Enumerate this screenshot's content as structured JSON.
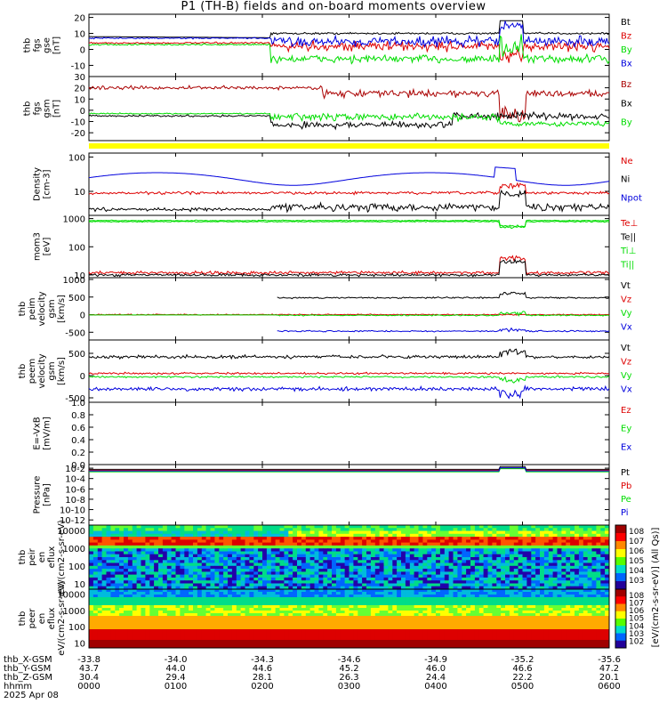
{
  "title": "P1 (TH-B) fields and on-board moments overview",
  "date": "2025 Apr 08",
  "colorbar_unit": "[eV/(cm2-s-sr-eV)] (All Qs)]",
  "time_axis": {
    "rows": [
      {
        "label": "thb_X-GSM",
        "values": [
          "-33.8",
          "-34.0",
          "-34.3",
          "-34.6",
          "-34.9",
          "-35.2",
          "-35.6"
        ]
      },
      {
        "label": "thb_Y-GSM",
        "values": [
          "43.7",
          "44.0",
          "44.6",
          "45.2",
          "46.0",
          "46.6",
          "47.2"
        ]
      },
      {
        "label": "thb_Z-GSM",
        "values": [
          "30.4",
          "29.4",
          "28.1",
          "26.3",
          "24.4",
          "22.2",
          "20.1"
        ]
      },
      {
        "label": "hhmm",
        "values": [
          "0000",
          "0100",
          "0200",
          "0300",
          "0400",
          "0500",
          "0600"
        ]
      }
    ]
  },
  "chart_data": [
    {
      "type": "line",
      "ylabel": "thb fgs gse [nT]",
      "ylim": [
        -17,
        22
      ],
      "ticks": [
        "20",
        "10",
        "0",
        "-10"
      ],
      "tickvals": [
        20,
        10,
        0,
        -10
      ],
      "series": [
        {
          "name": "Bt",
          "color": "#000000"
        },
        {
          "name": "Bz",
          "color": "#dd0000"
        },
        {
          "name": "By",
          "color": "#00dd00"
        },
        {
          "name": "Bx",
          "color": "#0000dd"
        }
      ]
    },
    {
      "type": "line",
      "ylabel": "thb fgs gsm [nT]",
      "ylim": [
        -27,
        30
      ],
      "ticks": [
        "30",
        "20",
        "10",
        "0",
        "-10",
        "-20"
      ],
      "tickvals": [
        30,
        20,
        10,
        0,
        -10,
        -20
      ],
      "series": [
        {
          "name": "Bz",
          "color": "#aa0000"
        },
        {
          "name": "Bx",
          "color": "#000000"
        },
        {
          "name": "By",
          "color": "#00dd00"
        }
      ]
    },
    {
      "type": "line",
      "ylabel": "Density [cm-3]",
      "log": true,
      "ylim": [
        2,
        130
      ],
      "ticks": [
        "100",
        "10"
      ],
      "tickvals": [
        100,
        10
      ],
      "series": [
        {
          "name": "Ne",
          "color": "#dd0000"
        },
        {
          "name": "Ni",
          "color": "#000000"
        },
        {
          "name": "Npot",
          "color": "#0000dd"
        }
      ]
    },
    {
      "type": "line",
      "ylabel": "mom3 [eV]",
      "log": true,
      "ylim": [
        8,
        1300
      ],
      "ticks": [
        "1000",
        "100",
        "10"
      ],
      "tickvals": [
        1000,
        100,
        10
      ],
      "series": [
        {
          "name": "Te⊥",
          "color": "#dd0000"
        },
        {
          "name": "Te||",
          "color": "#000000"
        },
        {
          "name": "Ti⊥",
          "color": "#00dd00"
        },
        {
          "name": "Ti||",
          "color": "#00dd00"
        }
      ]
    },
    {
      "type": "line",
      "ylabel": "thb peim velocity gsm [km/s]",
      "ylim": [
        -720,
        1050
      ],
      "ticks": [
        "1000",
        "500",
        "0",
        "-500"
      ],
      "tickvals": [
        1000,
        500,
        0,
        -500
      ],
      "series": [
        {
          "name": "Vt",
          "color": "#000000"
        },
        {
          "name": "Vz",
          "color": "#dd0000"
        },
        {
          "name": "Vy",
          "color": "#00dd00"
        },
        {
          "name": "Vx",
          "color": "#0000dd"
        }
      ]
    },
    {
      "type": "line",
      "ylabel": "thb peem velocity gsm [km/s]",
      "ylim": [
        -600,
        800
      ],
      "ticks": [
        "500",
        "0",
        "-500"
      ],
      "tickvals": [
        500,
        0,
        -500
      ],
      "series": [
        {
          "name": "Vt",
          "color": "#000000"
        },
        {
          "name": "Vz",
          "color": "#dd0000"
        },
        {
          "name": "Vy",
          "color": "#00dd00"
        },
        {
          "name": "Vx",
          "color": "#0000dd"
        }
      ]
    },
    {
      "type": "line",
      "ylabel": "E=-VxB [mV/m]",
      "ylim": [
        0,
        1
      ],
      "ticks": [
        "1.0",
        "0.8",
        "0.6",
        "0.4",
        "0.2",
        "0.0"
      ],
      "tickvals": [
        1,
        0.8,
        0.6,
        0.4,
        0.2,
        0
      ],
      "series": [
        {
          "name": "Ez",
          "color": "#dd0000"
        },
        {
          "name": "Ey",
          "color": "#00dd00"
        },
        {
          "name": "Ex",
          "color": "#0000dd"
        }
      ]
    },
    {
      "type": "line",
      "ylabel": "Pressure [nPa]",
      "log": true,
      "ylim": [
        1e-13,
        0.05
      ],
      "ticks": [
        "10-2",
        "10-4",
        "10-6",
        "10-8",
        "10-10",
        "10-12"
      ],
      "tickvals": [
        0.01,
        0.0001,
        1e-06,
        1e-08,
        1e-10,
        1e-12
      ],
      "series": [
        {
          "name": "Pt",
          "color": "#000000"
        },
        {
          "name": "Pb",
          "color": "#dd0000"
        },
        {
          "name": "Pe",
          "color": "#00dd00"
        },
        {
          "name": "Pi",
          "color": "#0000dd"
        }
      ]
    },
    {
      "type": "heatmap",
      "ylabel": "thb peir en eflux eV/(cm2-s-sr-eV)",
      "log": true,
      "ylim": [
        5,
        20000
      ],
      "ticks": [
        "10000",
        "1000",
        "100",
        "10"
      ],
      "tickvals": [
        10000,
        1000,
        100,
        10
      ],
      "colorbar_ticks": [
        "108",
        "107",
        "106",
        "105",
        "104",
        "103"
      ]
    },
    {
      "type": "heatmap",
      "ylabel": "thb peer en eflux eV/(cm2-s-sr-eV)",
      "log": true,
      "ylim": [
        5,
        20000
      ],
      "ticks": [
        "10000",
        "1000",
        "100",
        "10"
      ],
      "tickvals": [
        10000,
        1000,
        100,
        10
      ],
      "colorbar_ticks": [
        "108",
        "107",
        "106",
        "105",
        "104",
        "103",
        "102"
      ]
    }
  ]
}
